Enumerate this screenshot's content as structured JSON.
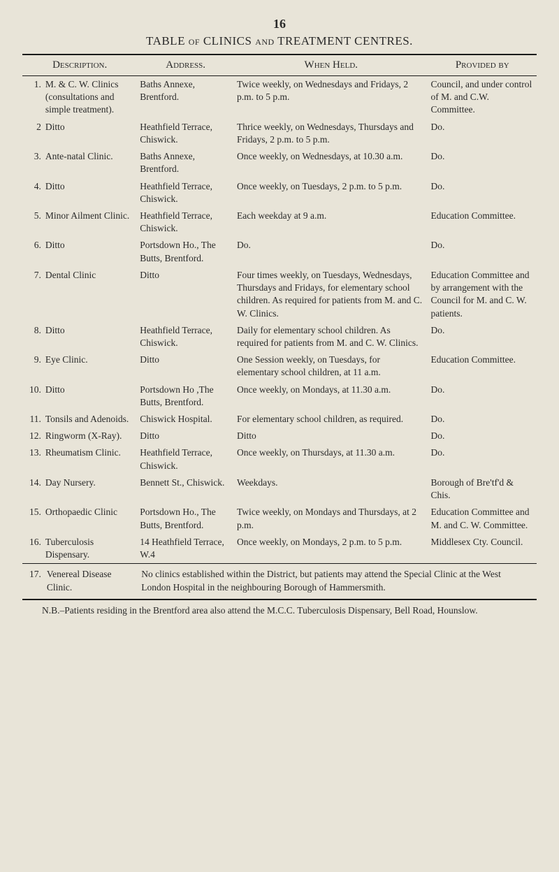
{
  "page_number": "16",
  "title_prefix": "TABLE ",
  "title_small1": "of",
  "title_mid": " CLINICS ",
  "title_small2": "and",
  "title_suffix": " TREATMENT CENTRES.",
  "columns": {
    "description": "Description.",
    "address": "Address.",
    "when": "When Held.",
    "provided": "Provided by"
  },
  "rows": [
    {
      "num": "1.",
      "desc": "M. & C. W. Clinics (con­sultations and simple treatment).",
      "addr": "Baths Annexe, Brentford.",
      "when": "Twice weekly, on Wednes­days and Fridays, 2 p.m. to 5 p.m.",
      "prov": "Council, and under control of M. and C.W. Committee."
    },
    {
      "num": "2",
      "desc": "Ditto",
      "addr": "Heathfield Terrace, Chiswick.",
      "when": "Thrice weekly, on Wednes­days, Thursdays and Fri­days, 2 p.m. to 5 p.m.",
      "prov": "Do."
    },
    {
      "num": "3.",
      "desc": "Ante-natal Clinic.",
      "addr": "Baths Annexe, Brentford.",
      "when": "Once weekly, on Wednes­days, at 10.30 a.m.",
      "prov": "Do."
    },
    {
      "num": "4.",
      "desc": "Ditto",
      "addr": "Heathfield Terrace, Chiswick.",
      "when": "Once weekly, on Tuesdays, 2 p.m. to 5 p.m.",
      "prov": "Do."
    },
    {
      "num": "5.",
      "desc": "Minor Ail­ment Clinic.",
      "addr": "Heathfield Terrace, Chiswick.",
      "when": "Each weekday at 9 a.m.",
      "prov": "Education Committee."
    },
    {
      "num": "6.",
      "desc": "Ditto",
      "addr": "Portsdown Ho., The Butts, Brentford.",
      "when": "Do.",
      "prov": "Do."
    },
    {
      "num": "7.",
      "desc": "Dental Clinic",
      "addr": "Ditto",
      "when": "Four times weekly, on Tuesdays, Wednesdays, Thursdays and Fridays, for elementary school chil­dren. As required for pa­tients from M. and C. W. Clinics.",
      "prov": "Education Committee and by arrange­ment with the Council for M. and C. W. patients."
    },
    {
      "num": "8.",
      "desc": "Ditto",
      "addr": "Heathfield Terrace, Chiswick.",
      "when": "Daily for elementary school children. As required for patients from M. and C. W. Clinics.",
      "prov": "Do."
    },
    {
      "num": "9.",
      "desc": "Eye Clinic.",
      "addr": "Ditto",
      "when": "One Session weekly, on Tuesdays, for elementary school children, at 11 a.m.",
      "prov": "Education Committee."
    },
    {
      "num": "10.",
      "desc": "Ditto",
      "addr": "Portsdown Ho ,The Butts, Brentford.",
      "when": "Once weekly, on Mondays, at 11.30 a.m.",
      "prov": "Do."
    },
    {
      "num": "11.",
      "desc": "Tonsils and Adenoids.",
      "addr": "Chiswick Hospital.",
      "when": "For elementary school chil­dren, as required.",
      "prov": "Do."
    },
    {
      "num": "12.",
      "desc": "Ringworm (X-Ray).",
      "addr": "Ditto",
      "when": "Ditto",
      "prov": "Do."
    },
    {
      "num": "13.",
      "desc": "Rheuma­tism Clinic.",
      "addr": "Heathfield Terrace, Chiswick.",
      "when": "Once weekly, on Thurs­days, at 11.30 a.m.",
      "prov": "Do."
    },
    {
      "num": "14.",
      "desc": "Day Nursery.",
      "addr": "Bennett St., Chiswick.",
      "when": "Weekdays.",
      "prov": "Borough of Bre'tf'd & Chis."
    },
    {
      "num": "15.",
      "desc": "Ortho­paedic Clinic",
      "addr": "Portsdown Ho., The Butts, Brentford.",
      "when": "Twice weekly, on Mondays and Thursdays, at 2 p.m.",
      "prov": "Education Committee and M. and C. W. Committee."
    },
    {
      "num": "16.",
      "desc": "Tuberculosis Dispensary.",
      "addr": "14 Heathfield Terrace, W.4",
      "when": "Once weekly, on Mondays, 2 p.m. to 5 p.m.",
      "prov": "Middlesex Cty. Council."
    }
  ],
  "footnote": {
    "num": "17.",
    "desc": "Venereal Disease Clinic.",
    "text": "No clinics established within the District, but patients may attend the Special Clinic at the West London Hospital in the neighbouring Borough of Hammersmith."
  },
  "footer": "N.B.–Patients residing in the Brentford area also attend the M.C.C. Tuberculosis Dispensary, Bell Road, Hounslow."
}
